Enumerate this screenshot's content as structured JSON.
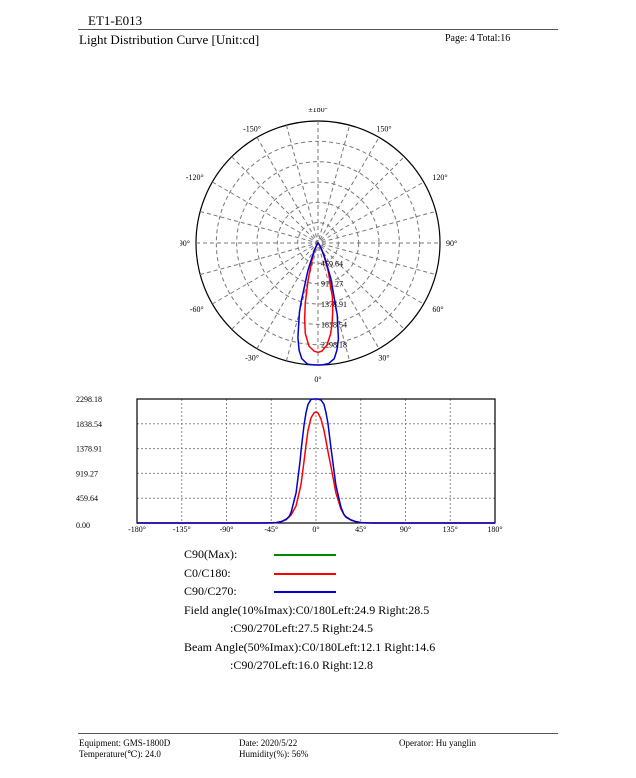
{
  "header": {
    "doc_id": "ET1-E013",
    "title": "Light Distribution Curve [Unit:cd]",
    "page_label": "Page: 4  Total:16"
  },
  "chart_data": [
    {
      "type": "polar",
      "angle_labels": [
        "±180°",
        "150°",
        "120°",
        "90°",
        "60°",
        "30°",
        "0°",
        "-30°",
        "-60°",
        "-90°",
        "-120°",
        "-150°"
      ],
      "radial_labels": [
        "459.64",
        "919.27",
        "1378.91",
        "1838.54",
        "2298.18"
      ],
      "rmax": 2298.18,
      "grid": true,
      "series": [
        {
          "name": "C0/C180",
          "color": "#ff0000",
          "angles": [
            -180,
            -60,
            -45,
            -40,
            -35,
            -30,
            -25,
            -20,
            -15,
            -12,
            -10,
            -8,
            -5,
            -2,
            0,
            2,
            5,
            8,
            10,
            12,
            15,
            20,
            25,
            28,
            30,
            35,
            40,
            45,
            60,
            180
          ],
          "values": [
            0,
            0,
            0,
            5,
            25,
            60,
            150,
            320,
            720,
            1150,
            1450,
            1720,
            1950,
            2040,
            2060,
            2040,
            1930,
            1720,
            1530,
            1330,
            1050,
            560,
            260,
            160,
            120,
            60,
            25,
            8,
            0,
            0
          ]
        },
        {
          "name": "C90/C270",
          "color": "#0000cc",
          "angles": [
            -180,
            -60,
            -50,
            -45,
            -40,
            -35,
            -30,
            -27,
            -25,
            -20,
            -16,
            -15,
            -12,
            -10,
            -8,
            -5,
            -2,
            0,
            2,
            5,
            8,
            10,
            12,
            15,
            20,
            25,
            28,
            30,
            35,
            40,
            45,
            50,
            60,
            180
          ],
          "values": [
            0,
            0,
            2,
            5,
            10,
            25,
            70,
            120,
            200,
            560,
            1150,
            1350,
            1820,
            2050,
            2200,
            2290,
            2298,
            2298,
            2298,
            2280,
            2200,
            2050,
            1850,
            1400,
            700,
            300,
            160,
            110,
            55,
            25,
            10,
            3,
            0,
            0
          ]
        }
      ]
    },
    {
      "type": "line",
      "x_tick_labels": [
        "-180°",
        "-135°",
        "-90°",
        "-45°",
        "0°",
        "45°",
        "90°",
        "135°",
        "180°"
      ],
      "y_tick_labels": [
        "0.00",
        "459.64",
        "919.27",
        "1378.91",
        "1838.54",
        "2298.18"
      ],
      "xlim": [
        -180,
        180
      ],
      "ylim": [
        0,
        2298.18
      ],
      "grid": true,
      "series_ref": "shared with polar chart"
    }
  ],
  "legend": [
    {
      "label": "C90(Max):",
      "color": "#008800"
    },
    {
      "label": "C0/C180:",
      "color": "#ff0000"
    },
    {
      "label": "C90/C270:",
      "color": "#0000cc"
    }
  ],
  "angles_text": {
    "field_line1": "Field angle(10%Imax):C0/180Left:24.9 Right:28.5",
    "field_line2": ":C90/270Left:27.5 Right:24.5",
    "beam_line1": "Beam Angle(50%Imax):C0/180Left:12.1 Right:14.6",
    "beam_line2": ":C90/270Left:16.0 Right:12.8"
  },
  "footer": {
    "equipment": "Equipment: GMS-1800D",
    "temperature": "Temperature(℃): 24.0",
    "date": "Date: 2020/5/22",
    "humidity": "Humidity(%): 56%",
    "operator": "Operator: Hu yanglin"
  }
}
